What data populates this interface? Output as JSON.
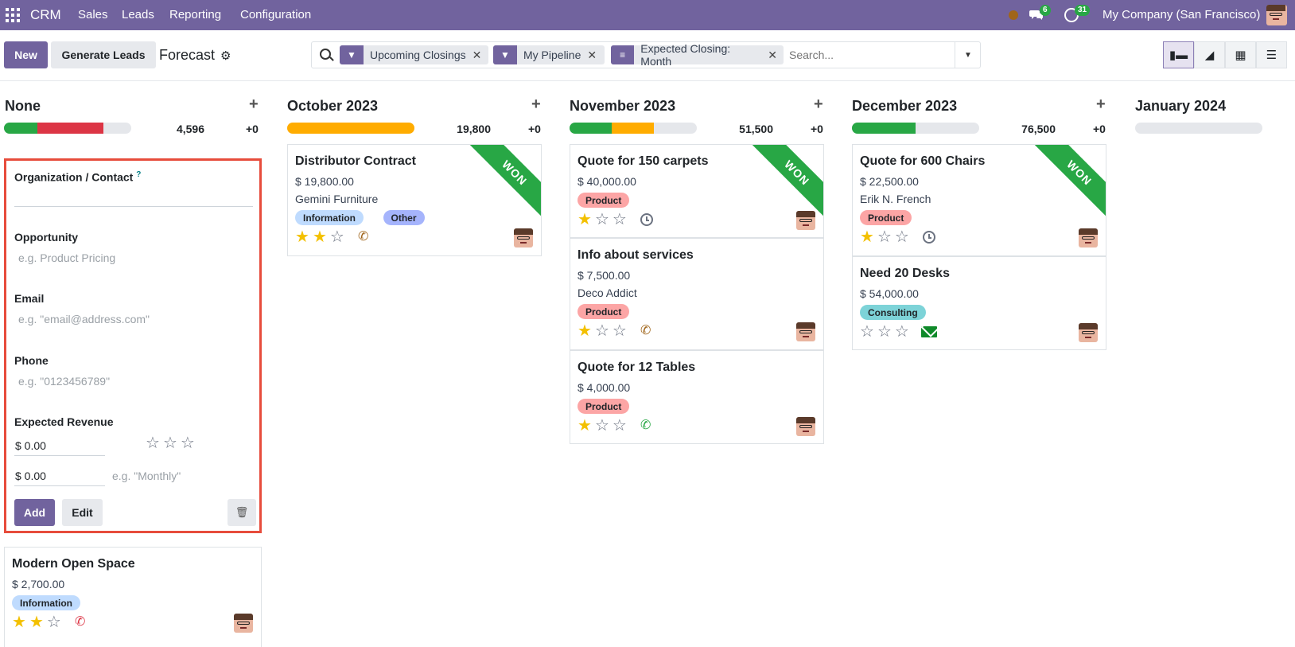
{
  "nav": {
    "brand": "CRM",
    "menu": [
      "Sales",
      "Leads",
      "Reporting",
      "Configuration"
    ],
    "messages_count": "6",
    "activities_count": "31",
    "company": "My Company (San Francisco)"
  },
  "control": {
    "new_label": "New",
    "generate_label": "Generate Leads",
    "breadcrumb": "Forecast",
    "facets": [
      {
        "label": "Upcoming Closings",
        "icon": "filter-icon"
      },
      {
        "label": "My Pipeline",
        "icon": "filter-icon"
      },
      {
        "label": "Expected Closing: Month",
        "icon": "group-by-icon"
      }
    ],
    "search_placeholder": "Search...",
    "views": [
      "kanban-view-icon",
      "graph-view-icon",
      "pivot-view-icon",
      "list-view-icon"
    ]
  },
  "columns": [
    {
      "title": "None",
      "sum": "4,596",
      "delta": "+0",
      "progress": [
        {
          "color": "#28a745",
          "pct": 26
        },
        {
          "color": "#dc3545",
          "pct": 52
        }
      ]
    },
    {
      "title": "October 2023",
      "sum": "19,800",
      "delta": "+0",
      "progress": [
        {
          "color": "#ffac00",
          "pct": 100
        }
      ]
    },
    {
      "title": "November 2023",
      "sum": "51,500",
      "delta": "+0",
      "progress": [
        {
          "color": "#28a745",
          "pct": 33
        },
        {
          "color": "#ffac00",
          "pct": 33
        }
      ]
    },
    {
      "title": "December 2023",
      "sum": "76,500",
      "delta": "+0",
      "progress": [
        {
          "color": "#28a745",
          "pct": 50
        }
      ]
    },
    {
      "title": "January 2024"
    }
  ],
  "quick_create": {
    "org_label": "Organization / Contact",
    "org_help": "?",
    "opportunity_label": "Opportunity",
    "opportunity_placeholder": "e.g. Product Pricing",
    "email_label": "Email",
    "email_placeholder": "e.g. \"email@address.com\"",
    "phone_label": "Phone",
    "phone_placeholder": "e.g. \"0123456789\"",
    "revenue_label": "Expected Revenue",
    "revenue_value": "$ 0.00",
    "recurring_value": "$ 0.00",
    "recurring_placeholder": "e.g. \"Monthly\"",
    "add_label": "Add",
    "edit_label": "Edit"
  },
  "cards": {
    "none": [
      {
        "title": "Modern Open Space",
        "amount": "$ 2,700.00",
        "tags": [
          {
            "label": "Information",
            "color": "#bfdbfe"
          }
        ],
        "stars": 2,
        "activity": "phone-icon",
        "activity_color": "#dc3545"
      }
    ],
    "october": [
      {
        "title": "Distributor Contract",
        "amount": "$ 19,800.00",
        "customer": "Gemini Furniture",
        "tags": [
          {
            "label": "Information",
            "color": "#bfdbfe"
          },
          {
            "label": "Other",
            "color": "#a5b4fc"
          }
        ],
        "stars": 2,
        "activity": "phone-icon",
        "activity_color": "#a0651a",
        "ribbon": "WON"
      }
    ],
    "november": [
      {
        "title": "Quote for 150 carpets",
        "amount": "$ 40,000.00",
        "tags": [
          {
            "label": "Product",
            "color": "#fca5a5"
          }
        ],
        "stars": 1,
        "activity": "clock-icon",
        "ribbon": "WON"
      },
      {
        "title": "Info about services",
        "amount": "$ 7,500.00",
        "customer": "Deco Addict",
        "tags": [
          {
            "label": "Product",
            "color": "#fca5a5"
          }
        ],
        "stars": 1,
        "activity": "phone-icon",
        "activity_color": "#a0651a"
      },
      {
        "title": "Quote for 12 Tables",
        "amount": "$ 4,000.00",
        "tags": [
          {
            "label": "Product",
            "color": "#fca5a5"
          }
        ],
        "stars": 1,
        "activity": "phone-icon",
        "activity_color": "#28a745"
      }
    ],
    "december": [
      {
        "title": "Quote for 600 Chairs",
        "amount": "$ 22,500.00",
        "customer": "Erik N. French",
        "tags": [
          {
            "label": "Product",
            "color": "#fca5a5"
          }
        ],
        "stars": 1,
        "activity": "clock-icon",
        "ribbon": "WON"
      },
      {
        "title": "Need 20 Desks",
        "amount": "$ 54,000.00",
        "tags": [
          {
            "label": "Consulting",
            "color": "#7dd3d8"
          }
        ],
        "stars": 0,
        "activity": "envelope-icon"
      }
    ]
  }
}
